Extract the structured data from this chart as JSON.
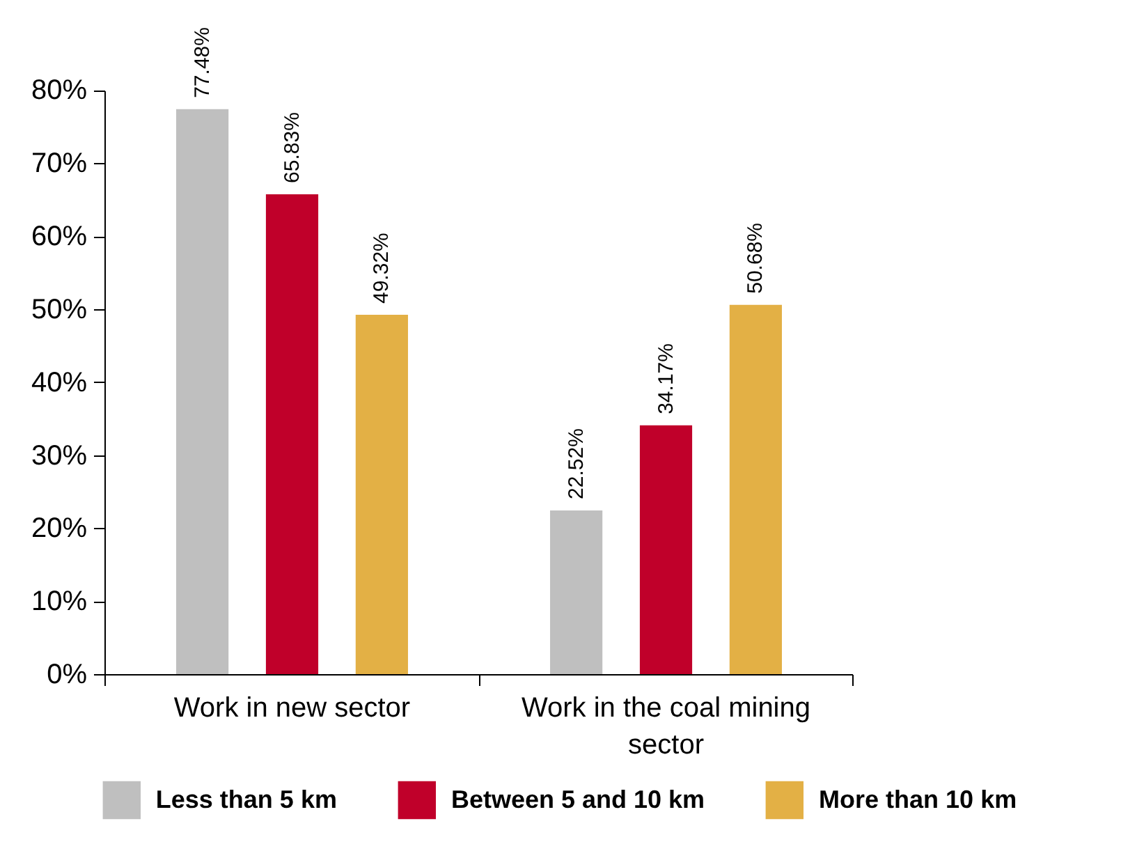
{
  "chart_data": {
    "type": "bar",
    "categories": [
      "Work in new sector",
      "Work in the coal mining sector"
    ],
    "series": [
      {
        "name": "Less than 5 km",
        "color": "#bfbfbf",
        "values": [
          77.48,
          22.52
        ],
        "value_labels": [
          "77.48%",
          "22.52%"
        ]
      },
      {
        "name": "Between 5 and 10 km",
        "color": "#c0002a",
        "values": [
          65.83,
          34.17
        ],
        "value_labels": [
          "65.83%",
          "34.17%"
        ]
      },
      {
        "name": "More than 10 km",
        "color": "#e3b045",
        "values": [
          49.32,
          50.68
        ],
        "value_labels": [
          "49.32%",
          "50.68%"
        ]
      }
    ],
    "ylim": [
      0,
      80
    ],
    "yticks": [
      {
        "value": 0,
        "label": "0%"
      },
      {
        "value": 10,
        "label": "10%"
      },
      {
        "value": 20,
        "label": "20%"
      },
      {
        "value": 30,
        "label": "30%"
      },
      {
        "value": 40,
        "label": "40%"
      },
      {
        "value": 50,
        "label": "50%"
      },
      {
        "value": 60,
        "label": "60%"
      },
      {
        "value": 70,
        "label": "70%"
      },
      {
        "value": 80,
        "label": "80%"
      }
    ],
    "grid": false,
    "legend": "bottom"
  }
}
